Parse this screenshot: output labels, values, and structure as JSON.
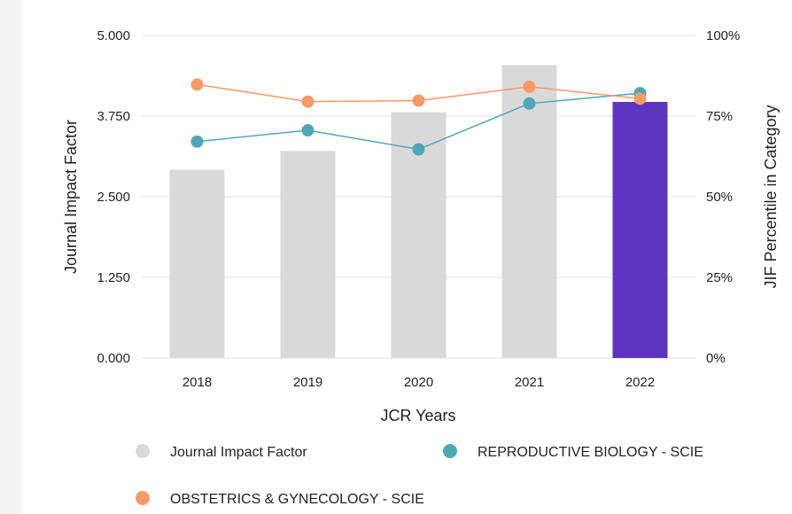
{
  "chart_data": {
    "type": "bar",
    "xlabel": "JCR Years",
    "ylabel": "Journal Impact Factor",
    "y2label": "JIF Percentile in Category",
    "categories": [
      "2018",
      "2019",
      "2020",
      "2021",
      "2022"
    ],
    "ylim": [
      0,
      5
    ],
    "y2lim": [
      0,
      100
    ],
    "yticks": [
      "0.000",
      "1.250",
      "2.500",
      "3.750",
      "5.000"
    ],
    "y2ticks": [
      "0%",
      "25%",
      "50%",
      "75%",
      "100%"
    ],
    "series": [
      {
        "name": "Journal Impact Factor",
        "type": "bar",
        "axis": "left",
        "values": [
          2.92,
          3.21,
          3.81,
          4.54,
          3.97
        ],
        "color": "#d9d9d9",
        "highlight_color": "#5e35c1",
        "highlight_index": 4
      },
      {
        "name": "REPRODUCTIVE BIOLOGY - SCIE",
        "type": "line",
        "axis": "right",
        "values": [
          67.1,
          70.6,
          64.7,
          78.9,
          82.1
        ],
        "color": "#4fa8b8"
      },
      {
        "name": "OBSTETRICS & GYNECOLOGY - SCIE",
        "type": "line",
        "axis": "right",
        "values": [
          84.8,
          79.5,
          79.8,
          84.1,
          80.4
        ],
        "color": "#f79a66"
      }
    ],
    "legend": [
      {
        "label": "Journal Impact Factor",
        "color": "#d9d9d9"
      },
      {
        "label": "REPRODUCTIVE BIOLOGY - SCIE",
        "color": "#4fa8b8"
      },
      {
        "label": "OBSTETRICS & GYNECOLOGY - SCIE",
        "color": "#f79a66"
      }
    ],
    "legend_position": "bottom"
  }
}
